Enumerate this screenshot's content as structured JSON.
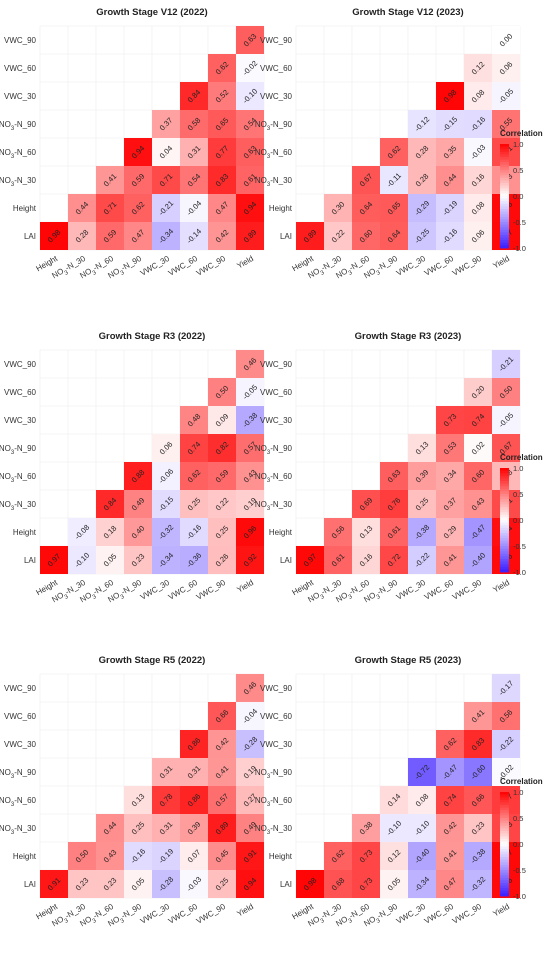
{
  "chart_data": [
    {
      "type": "heatmap",
      "title": "Growth Stage V12 (2022)",
      "x_labels": [
        "Height",
        "NO3-N_30",
        "NO3-N_60",
        "NO3-N_90",
        "VWC_30",
        "VWC_60",
        "VWC_90",
        "Yield"
      ],
      "y_labels": [
        "LAI",
        "Height",
        "NO3-N_30",
        "NO3-N_60",
        "NO3-N_90",
        "VWC_30",
        "VWC_60",
        "VWC_90"
      ],
      "matrix": [
        [
          0.98,
          0.28,
          0.59,
          0.47,
          -0.34,
          -0.14,
          0.42,
          0.89
        ],
        [
          null,
          0.44,
          0.71,
          0.62,
          -0.21,
          -0.04,
          0.47,
          0.94
        ],
        [
          null,
          null,
          0.41,
          0.59,
          0.71,
          0.54,
          0.83,
          0.61
        ],
        [
          null,
          null,
          null,
          0.94,
          0.04,
          0.31,
          0.77,
          0.63
        ],
        [
          null,
          null,
          null,
          null,
          0.37,
          0.58,
          0.65,
          0.54
        ],
        [
          null,
          null,
          null,
          null,
          null,
          0.84,
          0.52,
          -0.1
        ],
        [
          null,
          null,
          null,
          null,
          null,
          null,
          0.62,
          -0.02
        ],
        [
          null,
          null,
          null,
          null,
          null,
          null,
          null,
          0.63
        ]
      ]
    },
    {
      "type": "heatmap",
      "title": "Growth Stage V12 (2023)",
      "x_labels": [
        "Height",
        "NO3-N_30",
        "NO3-N_60",
        "NO3-N_90",
        "VWC_30",
        "VWC_60",
        "VWC_90",
        "Yield"
      ],
      "y_labels": [
        "LAI",
        "Height",
        "NO3-N_30",
        "NO3-N_60",
        "NO3-N_90",
        "VWC_30",
        "VWC_60",
        "VWC_90"
      ],
      "matrix": [
        [
          0.89,
          0.22,
          0.6,
          0.64,
          -0.25,
          -0.16,
          0.06,
          0.97
        ],
        [
          null,
          0.3,
          0.64,
          0.65,
          -0.29,
          -0.19,
          0.08,
          0.96
        ],
        [
          null,
          null,
          0.67,
          -0.11,
          0.28,
          0.44,
          0.16,
          0.43
        ],
        [
          null,
          null,
          null,
          0.62,
          0.28,
          0.35,
          -0.03,
          0.71
        ],
        [
          null,
          null,
          null,
          null,
          -0.12,
          -0.15,
          -0.16,
          0.55
        ],
        [
          null,
          null,
          null,
          null,
          null,
          0.98,
          0.08,
          -0.05
        ],
        [
          null,
          null,
          null,
          null,
          null,
          null,
          0.12,
          0.06
        ],
        [
          null,
          null,
          null,
          null,
          null,
          null,
          null,
          0.0
        ]
      ]
    },
    {
      "type": "heatmap",
      "title": "Growth Stage R3 (2022)",
      "x_labels": [
        "Height",
        "NO3-N_30",
        "NO3-N_60",
        "NO3-N_90",
        "VWC_30",
        "VWC_60",
        "VWC_90",
        "Yield"
      ],
      "y_labels": [
        "LAI",
        "Height",
        "NO3-N_30",
        "NO3-N_60",
        "NO3-N_90",
        "VWC_30",
        "VWC_60",
        "VWC_90"
      ],
      "matrix": [
        [
          0.97,
          -0.1,
          0.05,
          0.23,
          -0.34,
          -0.36,
          0.26,
          0.92
        ],
        [
          null,
          -0.08,
          0.18,
          0.4,
          -0.32,
          -0.16,
          0.25,
          0.96
        ],
        [
          null,
          null,
          0.84,
          0.49,
          -0.15,
          0.25,
          0.22,
          0.19
        ],
        [
          null,
          null,
          null,
          0.88,
          -0.06,
          0.62,
          0.59,
          0.43
        ],
        [
          null,
          null,
          null,
          null,
          0.06,
          0.74,
          0.82,
          0.57
        ],
        [
          null,
          null,
          null,
          null,
          null,
          0.48,
          0.09,
          -0.38
        ],
        [
          null,
          null,
          null,
          null,
          null,
          null,
          0.5,
          -0.05
        ],
        [
          null,
          null,
          null,
          null,
          null,
          null,
          null,
          0.46
        ]
      ]
    },
    {
      "type": "heatmap",
      "title": "Growth Stage R3 (2023)",
      "x_labels": [
        "Height",
        "NO3-N_30",
        "NO3-N_60",
        "NO3-N_90",
        "VWC_30",
        "VWC_60",
        "VWC_90",
        "Yield"
      ],
      "y_labels": [
        "LAI",
        "Height",
        "NO3-N_30",
        "NO3-N_60",
        "NO3-N_90",
        "VWC_30",
        "VWC_60",
        "VWC_90"
      ],
      "matrix": [
        [
          0.97,
          0.61,
          0.16,
          0.72,
          -0.22,
          0.41,
          -0.4,
          0.96
        ],
        [
          null,
          0.56,
          0.13,
          0.61,
          -0.38,
          0.29,
          -0.47,
          0.94
        ],
        [
          null,
          null,
          0.69,
          0.76,
          0.25,
          0.37,
          0.43,
          0.71
        ],
        [
          null,
          null,
          null,
          0.63,
          0.39,
          0.34,
          0.6,
          0.28
        ],
        [
          null,
          null,
          null,
          null,
          0.13,
          0.53,
          0.02,
          0.67
        ],
        [
          null,
          null,
          null,
          null,
          null,
          0.73,
          0.74,
          -0.05
        ],
        [
          null,
          null,
          null,
          null,
          null,
          null,
          0.2,
          0.5
        ],
        [
          null,
          null,
          null,
          null,
          null,
          null,
          null,
          -0.21
        ]
      ]
    },
    {
      "type": "heatmap",
      "title": "Growth Stage R5 (2022)",
      "x_labels": [
        "Height",
        "NO3-N_30",
        "NO3-N_60",
        "NO3-N_90",
        "VWC_30",
        "VWC_60",
        "VWC_90",
        "Yield"
      ],
      "y_labels": [
        "LAI",
        "Height",
        "NO3-N_30",
        "NO3-N_60",
        "NO3-N_90",
        "VWC_30",
        "VWC_60",
        "VWC_90"
      ],
      "matrix": [
        [
          0.91,
          0.23,
          0.23,
          0.05,
          -0.28,
          -0.03,
          0.25,
          0.94
        ],
        [
          null,
          0.5,
          0.43,
          -0.16,
          -0.19,
          0.07,
          0.45,
          0.91
        ],
        [
          null,
          null,
          0.44,
          0.25,
          0.31,
          0.39,
          0.89,
          0.49
        ],
        [
          null,
          null,
          null,
          0.13,
          0.78,
          0.86,
          0.57,
          0.27
        ],
        [
          null,
          null,
          null,
          null,
          0.31,
          0.31,
          0.41,
          0.19
        ],
        [
          null,
          null,
          null,
          null,
          null,
          0.86,
          0.42,
          -0.28
        ],
        [
          null,
          null,
          null,
          null,
          null,
          null,
          0.66,
          -0.04
        ],
        [
          null,
          null,
          null,
          null,
          null,
          null,
          null,
          0.46
        ]
      ]
    },
    {
      "type": "heatmap",
      "title": "Growth Stage R5 (2023)",
      "x_labels": [
        "Height",
        "NO3-N_30",
        "NO3-N_60",
        "NO3-N_90",
        "VWC_30",
        "VWC_60",
        "VWC_90",
        "Yield"
      ],
      "y_labels": [
        "LAI",
        "Height",
        "NO3-N_30",
        "NO3-N_60",
        "NO3-N_90",
        "VWC_30",
        "VWC_60",
        "VWC_90"
      ],
      "matrix": [
        [
          0.98,
          0.68,
          0.73,
          0.05,
          -0.34,
          0.47,
          -0.32,
          0.96
        ],
        [
          null,
          0.62,
          0.73,
          0.12,
          -0.4,
          0.41,
          -0.38,
          0.97
        ],
        [
          null,
          null,
          0.38,
          -0.1,
          -0.1,
          0.42,
          0.23,
          0.73
        ],
        [
          null,
          null,
          null,
          0.14,
          0.08,
          0.74,
          0.66,
          0.77
        ],
        [
          null,
          null,
          null,
          null,
          -0.72,
          -0.47,
          -0.6,
          -0.02
        ],
        [
          null,
          null,
          null,
          null,
          null,
          0.62,
          0.83,
          -0.22
        ],
        [
          null,
          null,
          null,
          null,
          null,
          null,
          0.41,
          0.56
        ],
        [
          null,
          null,
          null,
          null,
          null,
          null,
          null,
          -0.17
        ]
      ]
    }
  ],
  "legend": {
    "title": "Correlation",
    "ticks": [
      "1.0",
      "0.5",
      "0.0",
      "-0.5",
      "-1.0"
    ],
    "colors": {
      "negative": "#3b1cff",
      "zero": "#ffffff",
      "positive": "#ff0000"
    }
  }
}
